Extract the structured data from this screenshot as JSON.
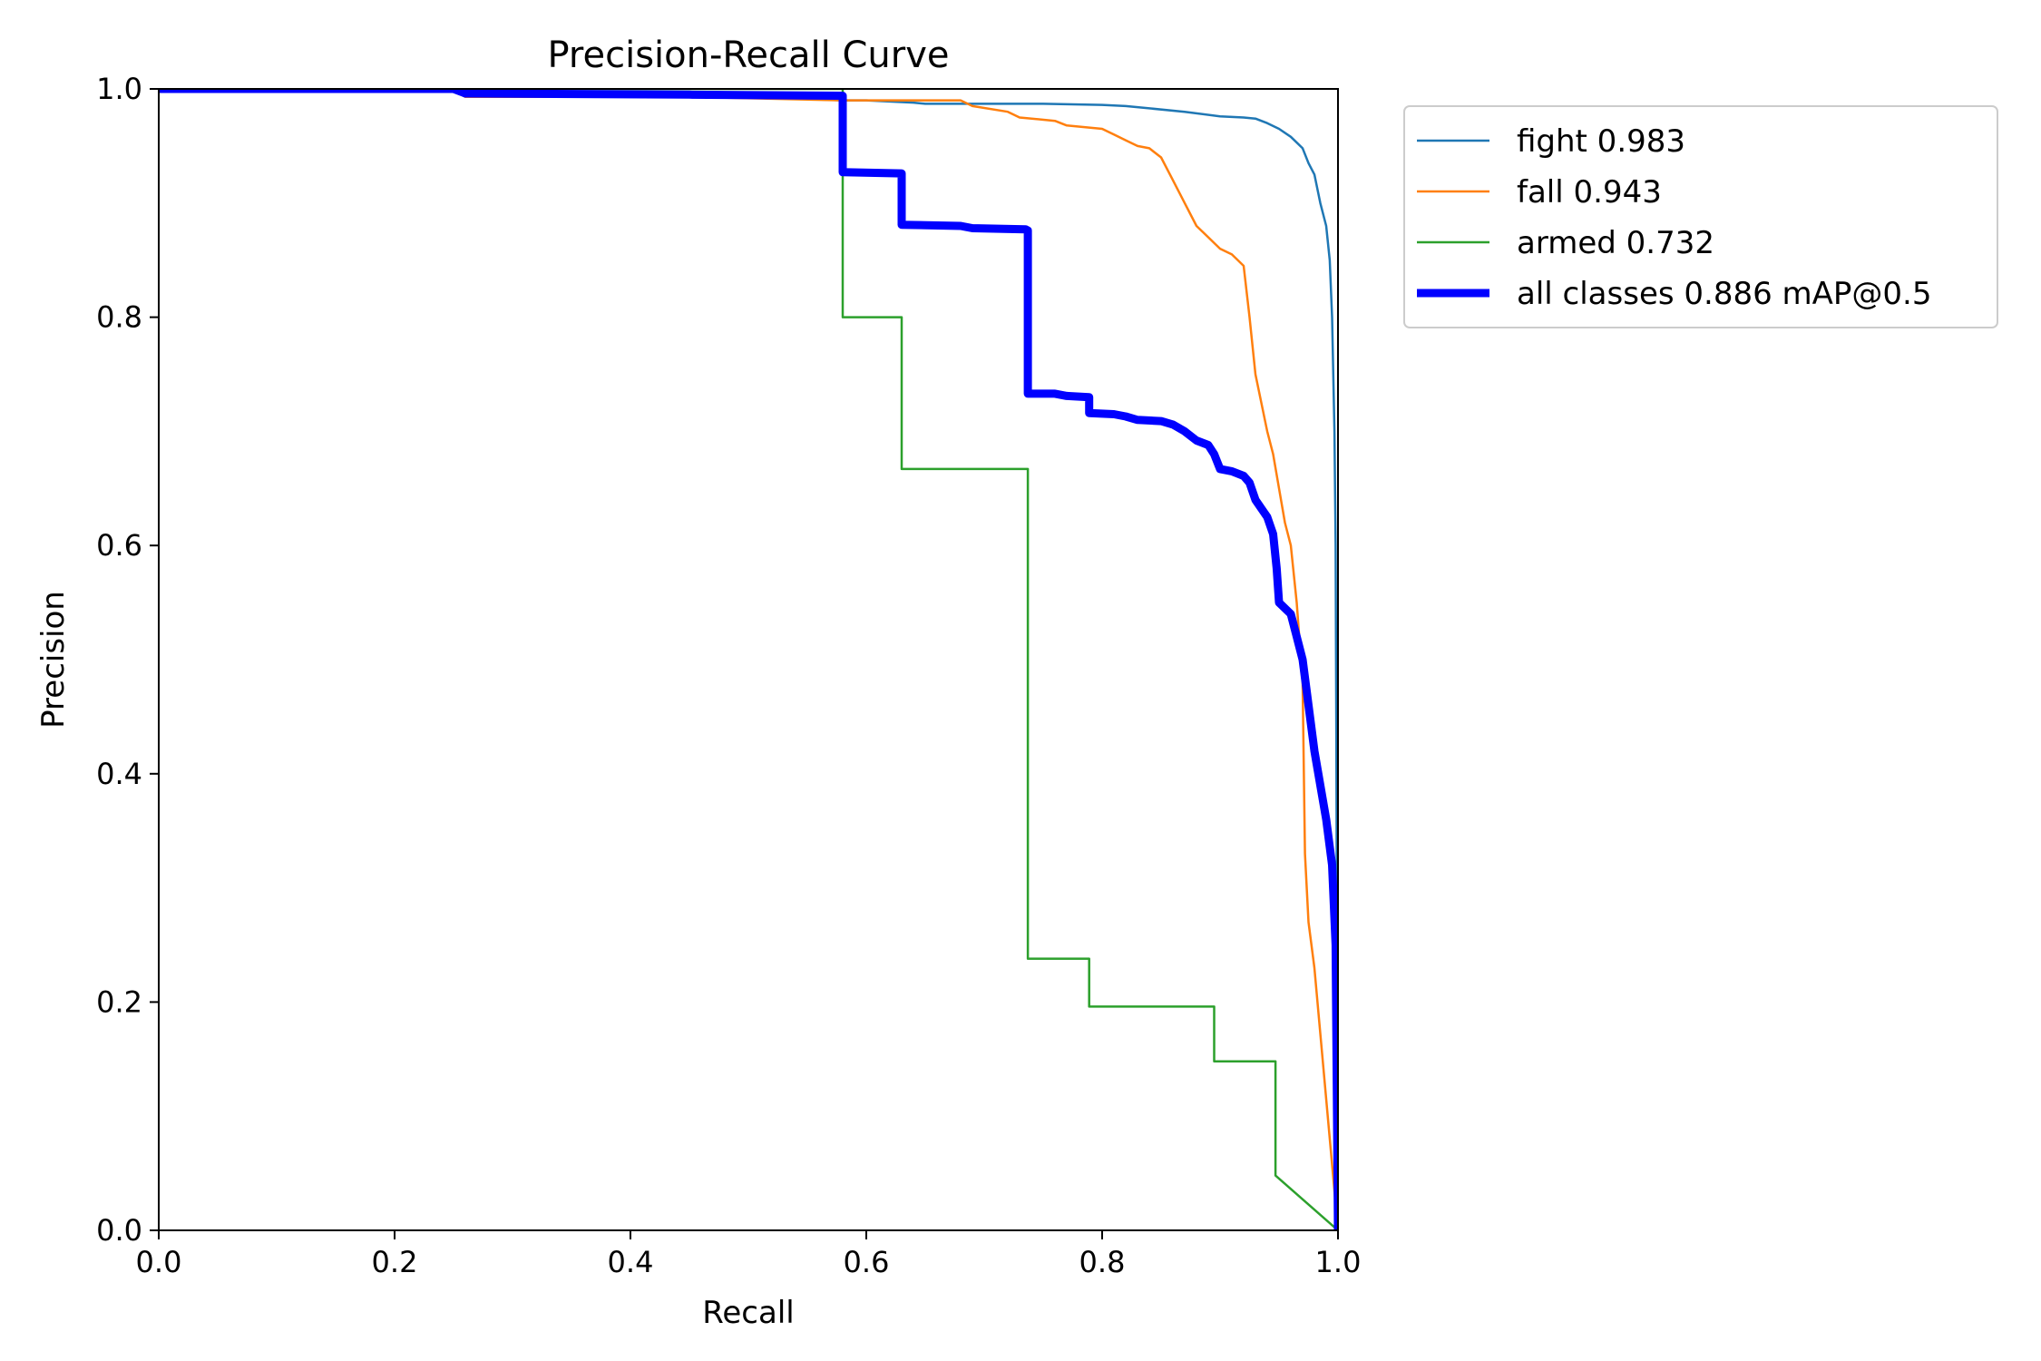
{
  "chart_data": {
    "type": "line",
    "title": "Precision-Recall Curve",
    "xlabel": "Recall",
    "ylabel": "Precision",
    "xlim": [
      0,
      1
    ],
    "ylim": [
      0,
      1
    ],
    "x_ticks": [
      "0.0",
      "0.2",
      "0.4",
      "0.6",
      "0.8",
      "1.0"
    ],
    "y_ticks": [
      "0.0",
      "0.2",
      "0.4",
      "0.6",
      "0.8",
      "1.0"
    ],
    "grid": false,
    "legend_position": "outside-top-right",
    "series": [
      {
        "name": "fight 0.983",
        "color": "#1f77b4",
        "points": [
          [
            0,
            1.0
          ],
          [
            0.25,
            1.0
          ],
          [
            0.26,
            0.995
          ],
          [
            0.4,
            0.995
          ],
          [
            0.5,
            0.993
          ],
          [
            0.58,
            0.99
          ],
          [
            0.6,
            0.99
          ],
          [
            0.64,
            0.988
          ],
          [
            0.65,
            0.987
          ],
          [
            0.75,
            0.987
          ],
          [
            0.8,
            0.986
          ],
          [
            0.82,
            0.985
          ],
          [
            0.84,
            0.983
          ],
          [
            0.87,
            0.98
          ],
          [
            0.9,
            0.976
          ],
          [
            0.92,
            0.975
          ],
          [
            0.93,
            0.974
          ],
          [
            0.94,
            0.97
          ],
          [
            0.95,
            0.965
          ],
          [
            0.96,
            0.958
          ],
          [
            0.97,
            0.948
          ],
          [
            0.975,
            0.935
          ],
          [
            0.98,
            0.925
          ],
          [
            0.985,
            0.9
          ],
          [
            0.99,
            0.88
          ],
          [
            0.993,
            0.85
          ],
          [
            0.995,
            0.8
          ],
          [
            0.996,
            0.75
          ],
          [
            0.997,
            0.7
          ],
          [
            0.998,
            0.6
          ],
          [
            0.9985,
            0.45
          ],
          [
            0.999,
            0.3
          ],
          [
            1.0,
            0.0
          ]
        ]
      },
      {
        "name": "fall 0.943",
        "color": "#ff7f0e",
        "points": [
          [
            0,
            1.0
          ],
          [
            0.25,
            1.0
          ],
          [
            0.26,
            0.993
          ],
          [
            0.45,
            0.993
          ],
          [
            0.58,
            0.99
          ],
          [
            0.62,
            0.99
          ],
          [
            0.68,
            0.99
          ],
          [
            0.69,
            0.985
          ],
          [
            0.72,
            0.98
          ],
          [
            0.73,
            0.975
          ],
          [
            0.76,
            0.972
          ],
          [
            0.77,
            0.968
          ],
          [
            0.8,
            0.965
          ],
          [
            0.81,
            0.96
          ],
          [
            0.82,
            0.955
          ],
          [
            0.83,
            0.95
          ],
          [
            0.84,
            0.948
          ],
          [
            0.85,
            0.94
          ],
          [
            0.86,
            0.92
          ],
          [
            0.87,
            0.9
          ],
          [
            0.88,
            0.88
          ],
          [
            0.89,
            0.87
          ],
          [
            0.9,
            0.86
          ],
          [
            0.91,
            0.855
          ],
          [
            0.92,
            0.845
          ],
          [
            0.925,
            0.8
          ],
          [
            0.93,
            0.75
          ],
          [
            0.94,
            0.7
          ],
          [
            0.945,
            0.68
          ],
          [
            0.95,
            0.65
          ],
          [
            0.955,
            0.62
          ],
          [
            0.96,
            0.6
          ],
          [
            0.965,
            0.55
          ],
          [
            0.97,
            0.48
          ],
          [
            0.972,
            0.33
          ],
          [
            0.975,
            0.27
          ],
          [
            0.98,
            0.23
          ],
          [
            1.0,
            0.0
          ]
        ]
      },
      {
        "name": "armed 0.732",
        "color": "#2ca02c",
        "points": [
          [
            0,
            1.0
          ],
          [
            0.58,
            1.0
          ],
          [
            0.58,
            0.929
          ],
          [
            0.58,
            0.8
          ],
          [
            0.63,
            0.8
          ],
          [
            0.63,
            0.667
          ],
          [
            0.737,
            0.667
          ],
          [
            0.737,
            0.238
          ],
          [
            0.789,
            0.238
          ],
          [
            0.789,
            0.196
          ],
          [
            0.895,
            0.196
          ],
          [
            0.895,
            0.148
          ],
          [
            0.947,
            0.148
          ],
          [
            0.947,
            0.048
          ],
          [
            1.0,
            0.0
          ]
        ]
      },
      {
        "name": "all classes 0.886 mAP@0.5",
        "color": "#0000ff",
        "bold": true,
        "points": [
          [
            0,
            1.0
          ],
          [
            0.25,
            1.0
          ],
          [
            0.26,
            0.996
          ],
          [
            0.45,
            0.995
          ],
          [
            0.58,
            0.994
          ],
          [
            0.58,
            0.927
          ],
          [
            0.63,
            0.926
          ],
          [
            0.63,
            0.881
          ],
          [
            0.68,
            0.88
          ],
          [
            0.69,
            0.878
          ],
          [
            0.735,
            0.877
          ],
          [
            0.737,
            0.876
          ],
          [
            0.737,
            0.733
          ],
          [
            0.76,
            0.733
          ],
          [
            0.77,
            0.731
          ],
          [
            0.789,
            0.73
          ],
          [
            0.789,
            0.716
          ],
          [
            0.81,
            0.715
          ],
          [
            0.82,
            0.713
          ],
          [
            0.83,
            0.71
          ],
          [
            0.85,
            0.709
          ],
          [
            0.86,
            0.706
          ],
          [
            0.87,
            0.7
          ],
          [
            0.88,
            0.692
          ],
          [
            0.89,
            0.688
          ],
          [
            0.895,
            0.68
          ],
          [
            0.9,
            0.667
          ],
          [
            0.91,
            0.665
          ],
          [
            0.92,
            0.661
          ],
          [
            0.925,
            0.655
          ],
          [
            0.93,
            0.64
          ],
          [
            0.94,
            0.625
          ],
          [
            0.945,
            0.61
          ],
          [
            0.948,
            0.58
          ],
          [
            0.95,
            0.55
          ],
          [
            0.96,
            0.54
          ],
          [
            0.965,
            0.52
          ],
          [
            0.97,
            0.5
          ],
          [
            0.975,
            0.46
          ],
          [
            0.98,
            0.42
          ],
          [
            0.985,
            0.39
          ],
          [
            0.99,
            0.36
          ],
          [
            0.995,
            0.32
          ],
          [
            0.998,
            0.25
          ],
          [
            1.0,
            0.0
          ]
        ]
      }
    ]
  }
}
